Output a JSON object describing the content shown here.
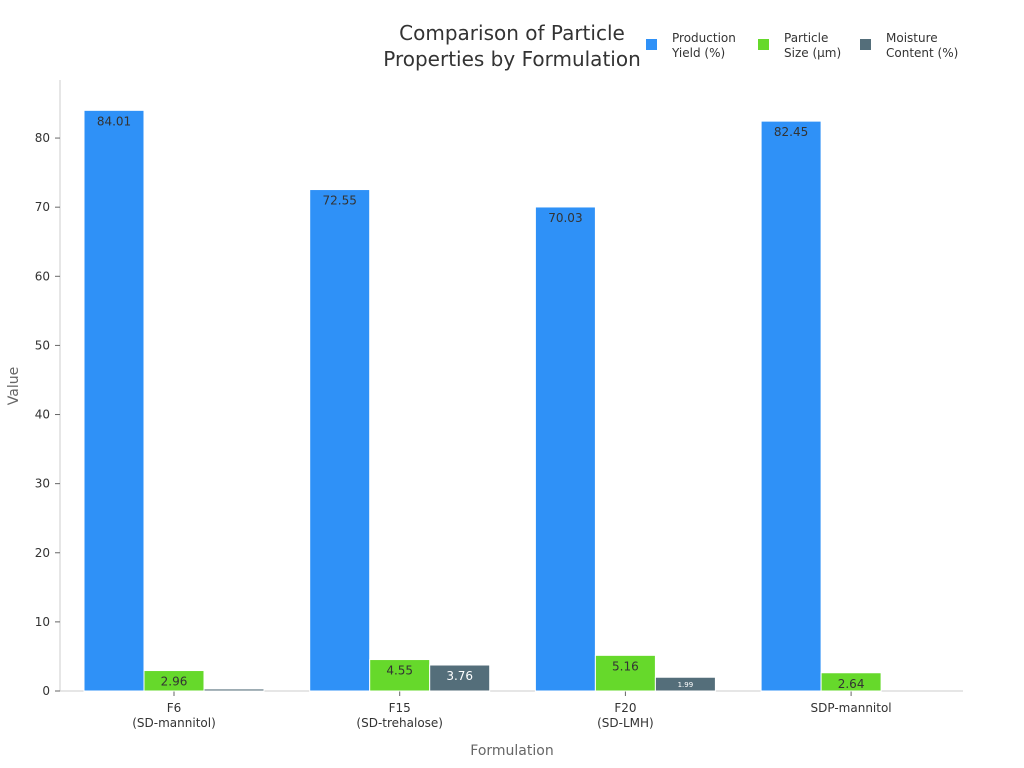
{
  "chart_data": {
    "type": "bar",
    "title": "Comparison of Particle Properties by Formulation",
    "title_lines": [
      "Comparison of Particle",
      "Properties by Formulation"
    ],
    "xlabel": "Formulation",
    "ylabel": "Value",
    "ylim": [
      0,
      88.4
    ],
    "yticks": [
      0,
      10,
      20,
      30,
      40,
      50,
      60,
      70,
      80
    ],
    "grid": false,
    "legend_placement": "top-right",
    "categories": [
      [
        "F6",
        "(SD-mannitol)"
      ],
      [
        "F15",
        "(SD-trehalose)"
      ],
      [
        "F20",
        "(SD-LMH)"
      ],
      [
        "SDP-mannitol"
      ]
    ],
    "series": [
      {
        "name": [
          "Production",
          "Yield (%)"
        ],
        "color": "#2f91f7",
        "values": [
          84.01,
          72.55,
          70.03,
          82.45
        ],
        "labels": [
          "84.01",
          "72.55",
          "70.03",
          "82.45"
        ]
      },
      {
        "name": [
          "Particle",
          "Size (μm)"
        ],
        "color": "#66d92b",
        "values": [
          2.96,
          4.55,
          5.16,
          2.64
        ],
        "labels": [
          "2.96",
          "4.55",
          "5.16",
          "2.64"
        ]
      },
      {
        "name": [
          "Moisture",
          "Content (%)"
        ],
        "color": "#546e7a",
        "values": [
          0.3,
          3.76,
          1.99,
          null
        ],
        "labels": [
          "",
          "3.76",
          "1.99",
          ""
        ]
      }
    ]
  }
}
